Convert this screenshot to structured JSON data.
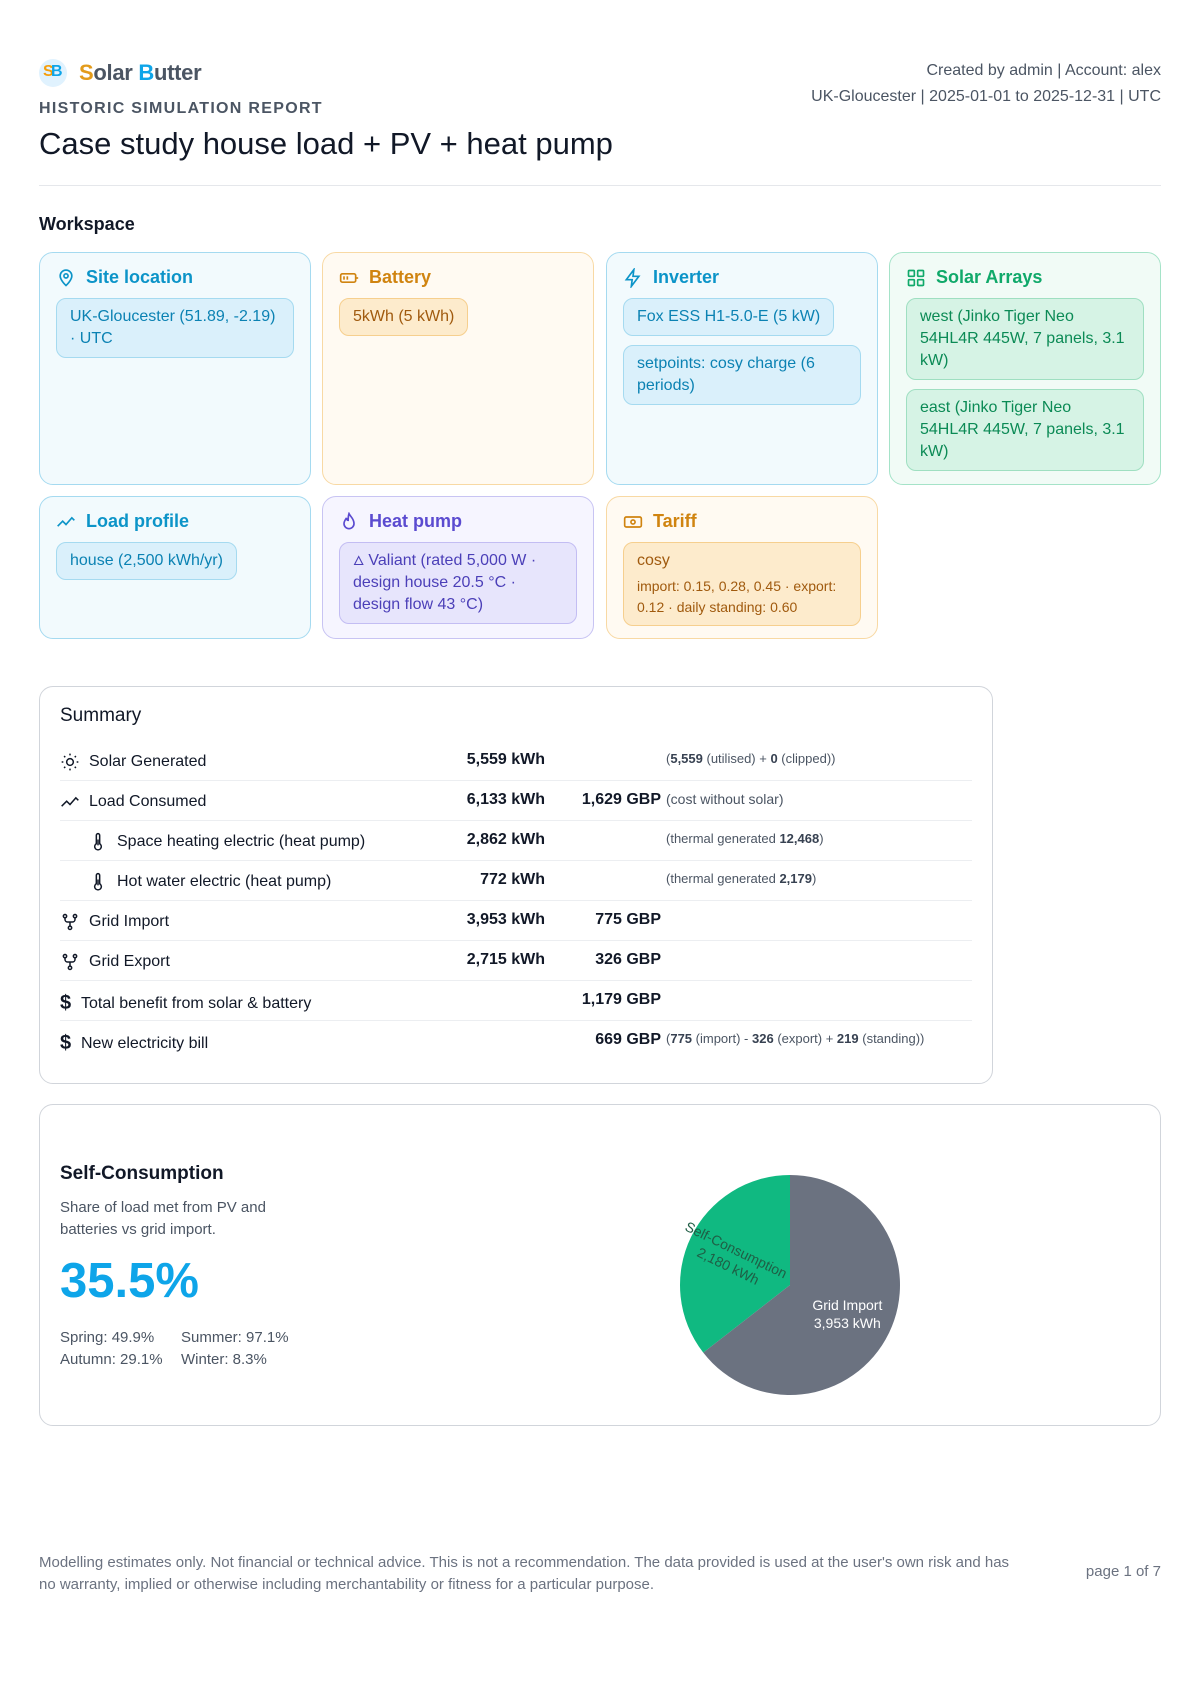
{
  "brand": {
    "name_first": "S",
    "name_rest1": "olar ",
    "name_first2": "B",
    "name_rest2": "utter",
    "logo_text": "SB"
  },
  "header": {
    "report_kind": "HISTORIC SIMULATION REPORT",
    "title": "Case study house load + PV + heat pump",
    "meta_line1": "Created by admin | Account: alex",
    "meta_line2": "UK-Gloucester | 2025-01-01 to 2025-12-31 | UTC"
  },
  "workspace": {
    "title": "Workspace",
    "site": {
      "label": "Site location",
      "chip": "UK-Gloucester (51.89, -2.19) · UTC"
    },
    "battery": {
      "label": "Battery",
      "chip": "5kWh (5 kWh)"
    },
    "inverter": {
      "label": "Inverter",
      "chips": [
        "Fox ESS H1-5.0-E (5 kW)",
        "setpoints: cosy charge (6 periods)"
      ]
    },
    "solar": {
      "label": "Solar Arrays",
      "chips": [
        "west (Jinko Tiger Neo 54HL4R 445W, 7 panels, 3.1 kW)",
        "east (Jinko Tiger Neo 54HL4R 445W, 7 panels, 3.1 kW)"
      ]
    },
    "load": {
      "label": "Load profile",
      "chip": "house (2,500 kWh/yr)"
    },
    "heatpump": {
      "label": "Heat pump",
      "chip": "Valiant (rated 5,000 W · design house 20.5 °C · design flow 43 °C)"
    },
    "tariff": {
      "label": "Tariff",
      "name": "cosy",
      "detail": "import: 0.15, 0.28, 0.45 · export: 0.12 · daily standing: 0.60"
    }
  },
  "summary": {
    "title": "Summary",
    "rows": [
      {
        "label": "Solar Generated",
        "kwh": "5,559 kWh",
        "gbp": "",
        "note_pre": "(",
        "note_b1": "5,559",
        "note_m1": " (utilised) + ",
        "note_b2": "0",
        "note_m2": " (clipped))",
        "note_b3": "",
        "note_m3": ""
      },
      {
        "label": "Load Consumed",
        "kwh": "6,133 kWh",
        "gbp": "1,629 GBP",
        "note_pre": "(cost without solar)",
        "note_b1": "",
        "note_m1": "",
        "note_b2": "",
        "note_m2": "",
        "note_b3": "",
        "note_m3": ""
      },
      {
        "label": "Space heating electric (heat pump)",
        "kwh": "2,862 kWh",
        "gbp": "",
        "note_pre": "(thermal generated ",
        "note_b1": "12,468",
        "note_m1": ")",
        "note_b2": "",
        "note_m2": "",
        "note_b3": "",
        "note_m3": ""
      },
      {
        "label": "Hot water electric (heat pump)",
        "kwh": "772 kWh",
        "gbp": "",
        "note_pre": "(thermal generated ",
        "note_b1": "2,179",
        "note_m1": ")",
        "note_b2": "",
        "note_m2": "",
        "note_b3": "",
        "note_m3": ""
      },
      {
        "label": "Grid Import",
        "kwh": "3,953 kWh",
        "gbp": "775 GBP",
        "note_pre": "",
        "note_b1": "",
        "note_m1": "",
        "note_b2": "",
        "note_m2": "",
        "note_b3": "",
        "note_m3": ""
      },
      {
        "label": "Grid Export",
        "kwh": "2,715 kWh",
        "gbp": "326 GBP",
        "note_pre": "",
        "note_b1": "",
        "note_m1": "",
        "note_b2": "",
        "note_m2": "",
        "note_b3": "",
        "note_m3": ""
      },
      {
        "label": "Total benefit from solar & battery",
        "kwh": "",
        "gbp": "1,179 GBP",
        "note_pre": "",
        "note_b1": "",
        "note_m1": "",
        "note_b2": "",
        "note_m2": "",
        "note_b3": "",
        "note_m3": ""
      },
      {
        "label": "New electricity bill",
        "kwh": "",
        "gbp": "669 GBP",
        "note_pre": "(",
        "note_b1": "775",
        "note_m1": " (import) - ",
        "note_b2": "326",
        "note_m2": " (export) + ",
        "note_b3": "219",
        "note_m3": " (standing))"
      }
    ]
  },
  "self_consumption": {
    "title": "Self-Consumption",
    "description": "Share of load met from PV and batteries vs grid import.",
    "percent": "35.5%",
    "seasons": [
      "Spring: 49.9%",
      "Summer: 97.1%",
      "Autumn: 29.1%",
      "Winter: 8.3%"
    ]
  },
  "chart_data": {
    "type": "pie",
    "slices": [
      {
        "label": "Self-Consumption",
        "value": 2180,
        "value_label": "2,180 kWh",
        "color": "#10b981"
      },
      {
        "label": "Grid Import",
        "value": 3953,
        "value_label": "3,953 kWh",
        "color": "#6b7280"
      }
    ]
  },
  "footer": {
    "disclaimer": "Modelling estimates only. Not financial or technical advice. This is not a recommendation. The data provided is used at the user's own risk and has no warranty, implied or otherwise including merchantability or fitness for a particular purpose.",
    "page": "page 1 of 7"
  }
}
